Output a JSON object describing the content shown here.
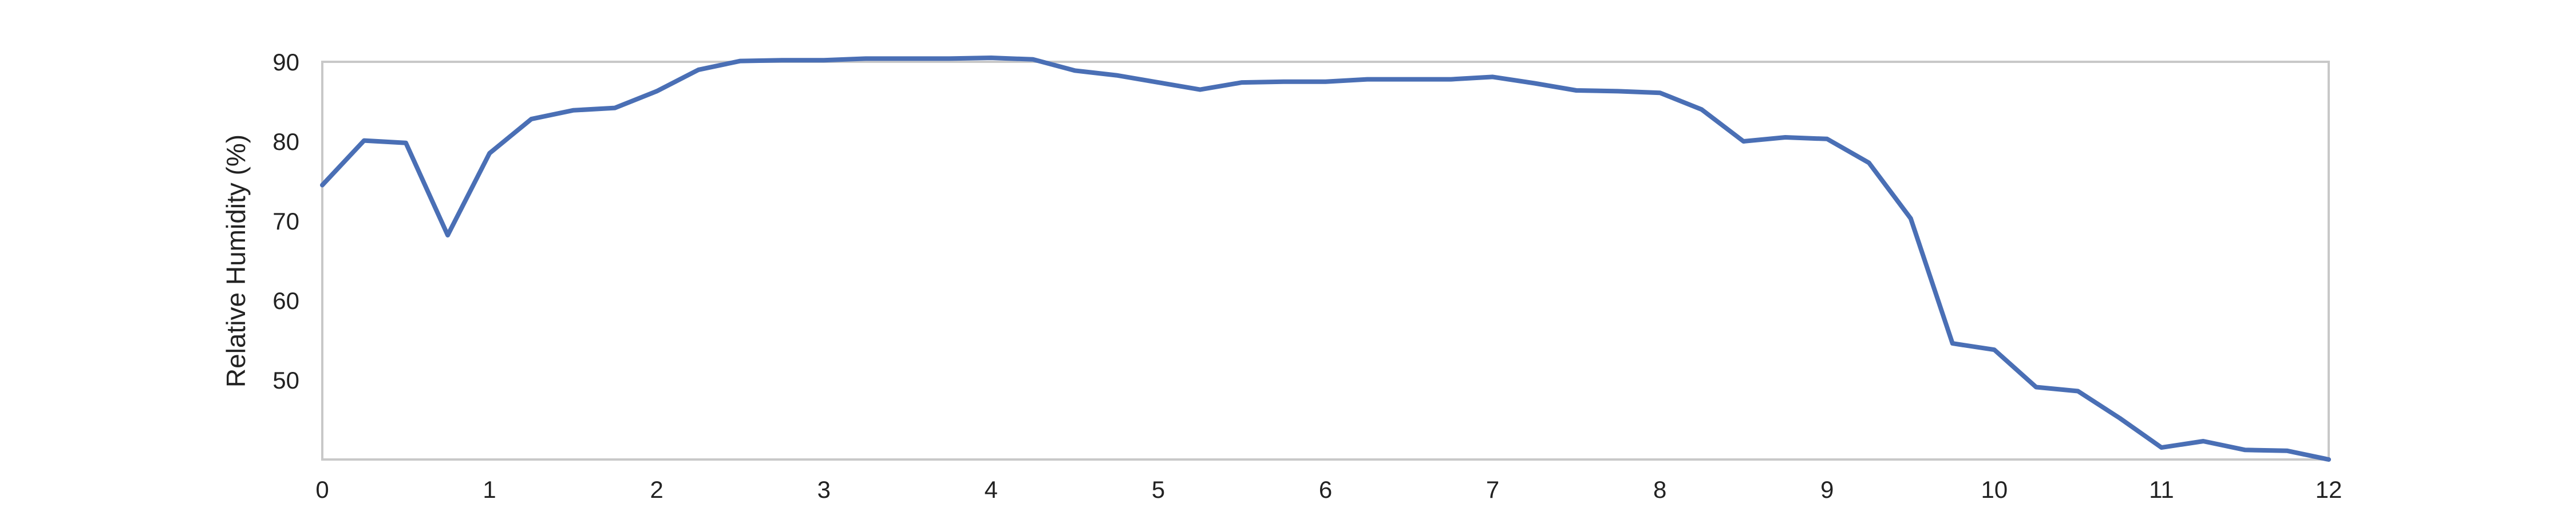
{
  "chart_data": {
    "type": "line",
    "xlabel": "",
    "ylabel": "Relative Humidity (%)",
    "xlim": [
      0,
      12
    ],
    "ylim": [
      40,
      90
    ],
    "xticks": [
      0,
      1,
      2,
      3,
      4,
      5,
      6,
      7,
      8,
      9,
      10,
      11,
      12
    ],
    "yticks": [
      50,
      60,
      70,
      80,
      90
    ],
    "grid": false,
    "legend": "none",
    "series": [
      {
        "color": "#4a6fb5",
        "x": [
          0,
          0.25,
          0.5,
          0.75,
          1,
          1.25,
          1.5,
          1.75,
          2,
          2.25,
          2.5,
          2.75,
          3,
          3.25,
          3.5,
          3.75,
          4,
          4.25,
          4.5,
          4.75,
          5,
          5.25,
          5.5,
          5.75,
          6,
          6.25,
          6.5,
          6.75,
          7,
          7.25,
          7.5,
          7.75,
          8,
          8.25,
          8.5,
          8.75,
          9,
          9.25,
          9.5,
          9.75,
          10,
          10.25,
          10.5,
          10.75,
          11,
          11.25,
          11.5,
          11.75,
          12
        ],
        "y": [
          74.5,
          80.1,
          79.8,
          68.2,
          78.5,
          82.8,
          83.9,
          84.2,
          86.3,
          89.0,
          90.1,
          90.2,
          90.2,
          90.4,
          90.4,
          90.4,
          90.5,
          90.3,
          88.9,
          88.3,
          87.4,
          86.5,
          87.4,
          87.5,
          87.5,
          87.8,
          87.8,
          87.8,
          88.1,
          87.3,
          86.4,
          86.3,
          86.1,
          84.0,
          80.0,
          80.5,
          80.3,
          77.3,
          70.3,
          54.6,
          53.8,
          49.1,
          48.6,
          45.2,
          41.5,
          42.3,
          41.2,
          41.1,
          40.0
        ]
      }
    ]
  }
}
